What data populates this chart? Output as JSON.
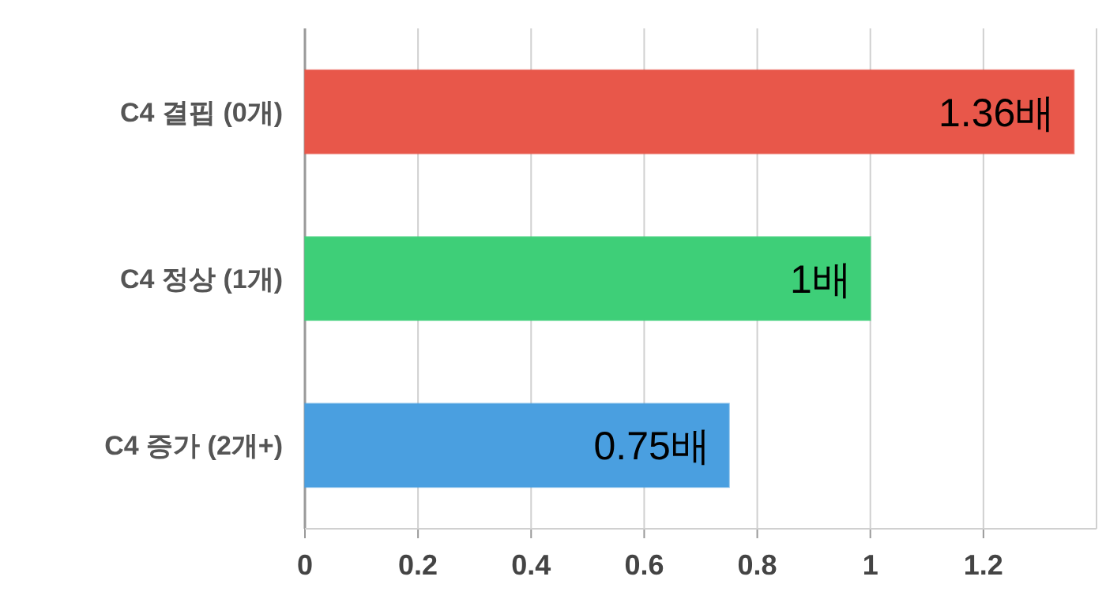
{
  "chart_data": {
    "type": "bar",
    "orientation": "horizontal",
    "categories": [
      "C4 결핍 (0개)",
      "C4 정상 (1개)",
      "C4 증가 (2개+)"
    ],
    "values": [
      1.36,
      1,
      0.75
    ],
    "colors": [
      "#e8574a",
      "#3ecf78",
      "#4a9fe0"
    ],
    "value_labels": [
      "1.36배",
      "1배",
      "0.75배"
    ],
    "xlim": [
      0,
      1.4
    ],
    "xticks": [
      0,
      0.2,
      0.4,
      0.6,
      0.8,
      1,
      1.2
    ],
    "grid": "x"
  }
}
